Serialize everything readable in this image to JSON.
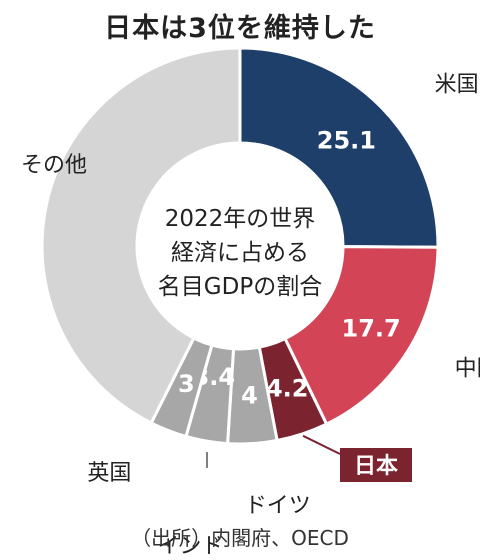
{
  "title": "日本は3位を維持した",
  "source": "（出所）内閣府、OECD",
  "chart_data": {
    "type": "pie",
    "center_label": [
      "2022年の世界",
      "経済に占める",
      "名目GDPの割合"
    ],
    "slices": [
      {
        "name": "米国",
        "value": 25.1,
        "value_label": "25.1",
        "color": "#1f3f6b"
      },
      {
        "name": "中国",
        "value": 17.7,
        "value_label": "17.7",
        "color": "#d24456"
      },
      {
        "name": "日本",
        "value": 4.2,
        "value_label": "4.2",
        "color": "#7b2430"
      },
      {
        "name": "ドイツ",
        "value": 4.0,
        "value_label": "4",
        "color": "#a7a7a7"
      },
      {
        "name": "インド",
        "value": 3.4,
        "value_label": "3.4",
        "color": "#a7a7a7"
      },
      {
        "name": "英国",
        "value": 3.0,
        "value_label": "3",
        "color": "#a7a7a7"
      },
      {
        "name": "その他",
        "value": 42.6,
        "value_label": "",
        "color": "#d5d5d5"
      }
    ],
    "highlight": "日本"
  }
}
